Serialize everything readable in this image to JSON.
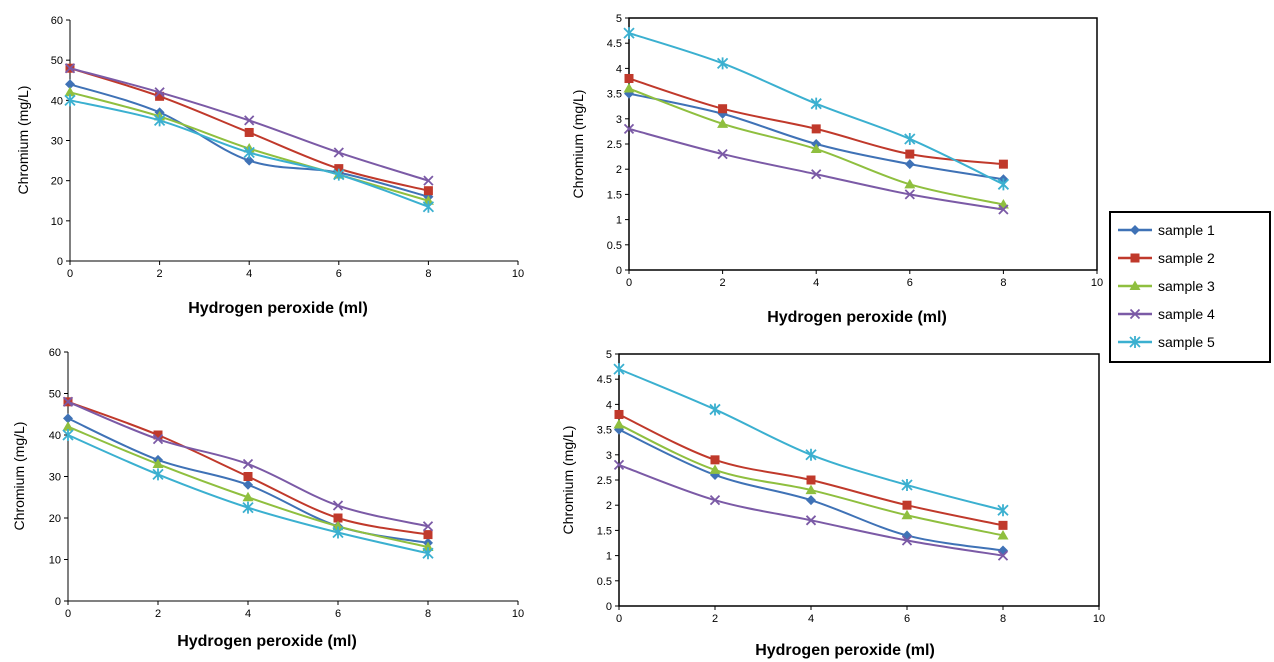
{
  "colors": {
    "sample 1": "#3f72b6",
    "sample 2": "#c0392b",
    "sample 3": "#8fbf3f",
    "sample 4": "#7b5aa6",
    "sample 5": "#3bb0d0"
  },
  "legend": {
    "entries": [
      "sample 1",
      "sample 2",
      "sample 3",
      "sample 4",
      "sample 5"
    ],
    "placement": "right"
  },
  "chart_data": [
    {
      "type": "line",
      "xlabel": "Hydrogen peroxide (ml)",
      "ylabel": "Chromium  (mg/L)",
      "x": [
        0,
        2,
        4,
        6,
        8
      ],
      "xlim": [
        0,
        10
      ],
      "xticks": [
        0,
        2,
        4,
        6,
        8,
        10
      ],
      "xtick_labels": [
        "0",
        "2",
        "4",
        "6",
        "8",
        "10"
      ],
      "ylim": [
        0,
        60
      ],
      "yticks": [
        0,
        10,
        20,
        30,
        40,
        50,
        60
      ],
      "ytick_labels": [
        "0",
        "10",
        "20",
        "30",
        "40",
        "50",
        "60"
      ],
      "series": [
        {
          "name": "sample 1",
          "marker": "diamond",
          "values": [
            44,
            37,
            25,
            22,
            16
          ]
        },
        {
          "name": "sample 2",
          "marker": "square",
          "values": [
            48,
            41,
            32,
            23,
            17.5
          ]
        },
        {
          "name": "sample 3",
          "marker": "triangle",
          "values": [
            42,
            36,
            28,
            21.5,
            15
          ]
        },
        {
          "name": "sample 4",
          "marker": "x",
          "values": [
            48,
            42,
            35,
            27,
            20
          ]
        },
        {
          "name": "sample 5",
          "marker": "star",
          "values": [
            40,
            35,
            27,
            21.5,
            13.5
          ]
        }
      ]
    },
    {
      "type": "line",
      "xlabel": "Hydrogen peroxide (ml)",
      "ylabel": "Chromium  (mg/L)",
      "x": [
        0,
        2,
        4,
        6,
        8
      ],
      "xlim": [
        0,
        10
      ],
      "xticks": [
        0,
        2,
        4,
        6,
        8,
        10
      ],
      "xtick_labels": [
        "0",
        "2",
        "4",
        "6",
        "8",
        "10"
      ],
      "ylim": [
        0,
        5
      ],
      "yticks": [
        0,
        0.5,
        1,
        1.5,
        2,
        2.5,
        3,
        3.5,
        4,
        4.5,
        5
      ],
      "ytick_labels": [
        "0",
        "0.5",
        "1",
        "1.5",
        "2",
        "2.5",
        "3",
        "3.5",
        "4",
        "4.5",
        "5"
      ],
      "series": [
        {
          "name": "sample 1",
          "marker": "diamond",
          "values": [
            3.5,
            3.1,
            2.5,
            2.1,
            1.8
          ]
        },
        {
          "name": "sample 2",
          "marker": "square",
          "values": [
            3.8,
            3.2,
            2.8,
            2.3,
            2.1
          ]
        },
        {
          "name": "sample 3",
          "marker": "triangle",
          "values": [
            3.6,
            2.9,
            2.4,
            1.7,
            1.3
          ]
        },
        {
          "name": "sample 4",
          "marker": "x",
          "values": [
            2.8,
            2.3,
            1.9,
            1.5,
            1.2
          ]
        },
        {
          "name": "sample 5",
          "marker": "star",
          "values": [
            4.7,
            4.1,
            3.3,
            2.6,
            1.7
          ]
        }
      ]
    },
    {
      "type": "line",
      "xlabel": "Hydrogen peroxide (ml)",
      "ylabel": "Chromium  (mg/L)",
      "x": [
        0,
        2,
        4,
        6,
        8
      ],
      "xlim": [
        0,
        10
      ],
      "xticks": [
        0,
        2,
        4,
        6,
        8,
        10
      ],
      "xtick_labels": [
        "0",
        "2",
        "4",
        "6",
        "8",
        "10"
      ],
      "ylim": [
        0,
        60
      ],
      "yticks": [
        0,
        10,
        20,
        30,
        40,
        50,
        60
      ],
      "ytick_labels": [
        "0",
        "10",
        "20",
        "30",
        "40",
        "50",
        "60"
      ],
      "series": [
        {
          "name": "sample 1",
          "marker": "diamond",
          "values": [
            44,
            34,
            28,
            18,
            14
          ]
        },
        {
          "name": "sample 2",
          "marker": "square",
          "values": [
            48,
            40,
            30,
            20,
            16
          ]
        },
        {
          "name": "sample 3",
          "marker": "triangle",
          "values": [
            42,
            33,
            25,
            18,
            13
          ]
        },
        {
          "name": "sample 4",
          "marker": "x",
          "values": [
            48,
            39,
            33,
            23,
            18
          ]
        },
        {
          "name": "sample 5",
          "marker": "star",
          "values": [
            40,
            30.5,
            22.5,
            16.5,
            11.5
          ]
        }
      ]
    },
    {
      "type": "line",
      "xlabel": "Hydrogen peroxide (ml)",
      "ylabel": "Chromium  (mg/L)",
      "x": [
        0,
        2,
        4,
        6,
        8
      ],
      "xlim": [
        0,
        10
      ],
      "xticks": [
        0,
        2,
        4,
        6,
        8,
        10
      ],
      "xtick_labels": [
        "0",
        "2",
        "4",
        "6",
        "8",
        "10"
      ],
      "ylim": [
        0,
        5
      ],
      "yticks": [
        0,
        0.5,
        1,
        1.5,
        2,
        2.5,
        3,
        3.5,
        4,
        4.5,
        5
      ],
      "ytick_labels": [
        "0",
        "0.5",
        "1",
        "1.5",
        "2",
        "2.5",
        "3",
        "3.5",
        "4",
        "4.5",
        "5"
      ],
      "series": [
        {
          "name": "sample 1",
          "marker": "diamond",
          "values": [
            3.5,
            2.6,
            2.1,
            1.4,
            1.1
          ]
        },
        {
          "name": "sample 2",
          "marker": "square",
          "values": [
            3.8,
            2.9,
            2.5,
            2.0,
            1.6
          ]
        },
        {
          "name": "sample 3",
          "marker": "triangle",
          "values": [
            3.6,
            2.7,
            2.3,
            1.8,
            1.4
          ]
        },
        {
          "name": "sample 4",
          "marker": "x",
          "values": [
            2.8,
            2.1,
            1.7,
            1.3,
            1.0
          ]
        },
        {
          "name": "sample 5",
          "marker": "star",
          "values": [
            4.7,
            3.9,
            3.0,
            2.4,
            1.9
          ]
        }
      ]
    }
  ]
}
